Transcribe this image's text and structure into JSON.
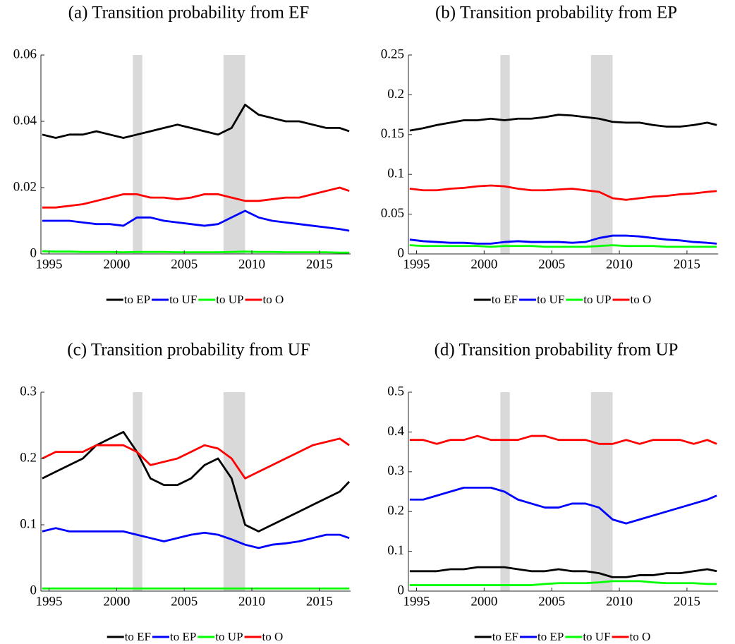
{
  "chart_data": [
    {
      "type": "line",
      "title": "(a) Transition probability from EF",
      "x": [
        1994.5,
        1995.5,
        1996.5,
        1997.5,
        1998.5,
        1999.5,
        2000.5,
        2001.5,
        2002.5,
        2003.5,
        2004.5,
        2005.5,
        2006.5,
        2007.5,
        2008.5,
        2009.5,
        2010.5,
        2011.5,
        2012.5,
        2013.5,
        2014.5,
        2015.5,
        2016.5,
        2017.2
      ],
      "xlim": [
        1994.4,
        2017.3
      ],
      "xticks": [
        1995,
        2000,
        2005,
        2010,
        2015
      ],
      "ylim": [
        0,
        0.06
      ],
      "yticks": [
        0,
        0.02,
        0.04,
        0.06
      ],
      "shaded_periods": [
        [
          2001.2,
          2001.9
        ],
        [
          2007.9,
          2009.5
        ]
      ],
      "shade_color": "#d9d9d9",
      "legend": "bottom",
      "series": [
        {
          "name": "to EP",
          "color": "#000000",
          "values": [
            0.036,
            0.035,
            0.036,
            0.036,
            0.037,
            0.036,
            0.035,
            0.036,
            0.037,
            0.038,
            0.039,
            0.038,
            0.037,
            0.036,
            0.038,
            0.045,
            0.042,
            0.041,
            0.04,
            0.04,
            0.039,
            0.038,
            0.038,
            0.037
          ]
        },
        {
          "name": "to UF",
          "color": "#0000ff",
          "values": [
            0.01,
            0.01,
            0.01,
            0.0095,
            0.009,
            0.009,
            0.0085,
            0.011,
            0.011,
            0.01,
            0.0095,
            0.009,
            0.0085,
            0.009,
            0.011,
            0.013,
            0.011,
            0.01,
            0.0095,
            0.009,
            0.0085,
            0.008,
            0.0075,
            0.007
          ]
        },
        {
          "name": "to UP",
          "color": "#00ff00",
          "values": [
            0.0008,
            0.0007,
            0.0007,
            0.0006,
            0.0006,
            0.0006,
            0.0005,
            0.0006,
            0.0006,
            0.0006,
            0.0005,
            0.0005,
            0.0005,
            0.0005,
            0.0006,
            0.0007,
            0.0006,
            0.0006,
            0.0005,
            0.0005,
            0.0005,
            0.0005,
            0.0004,
            0.0004
          ]
        },
        {
          "name": "to O",
          "color": "#ff0000",
          "values": [
            0.014,
            0.014,
            0.0145,
            0.015,
            0.016,
            0.017,
            0.018,
            0.018,
            0.017,
            0.017,
            0.0165,
            0.017,
            0.018,
            0.018,
            0.017,
            0.016,
            0.016,
            0.0165,
            0.017,
            0.017,
            0.018,
            0.019,
            0.02,
            0.019
          ]
        }
      ]
    },
    {
      "type": "line",
      "title": "(b) Transition probability from EP",
      "x": [
        1994.5,
        1995.5,
        1996.5,
        1997.5,
        1998.5,
        1999.5,
        2000.5,
        2001.5,
        2002.5,
        2003.5,
        2004.5,
        2005.5,
        2006.5,
        2007.5,
        2008.5,
        2009.5,
        2010.5,
        2011.5,
        2012.5,
        2013.5,
        2014.5,
        2015.5,
        2016.5,
        2017.2
      ],
      "xlim": [
        1994.4,
        2017.3
      ],
      "xticks": [
        1995,
        2000,
        2005,
        2010,
        2015
      ],
      "ylim": [
        0,
        0.25
      ],
      "yticks": [
        0,
        0.05,
        0.1,
        0.15,
        0.2,
        0.25
      ],
      "shaded_periods": [
        [
          2001.2,
          2001.9
        ],
        [
          2007.9,
          2009.5
        ]
      ],
      "shade_color": "#d9d9d9",
      "legend": "bottom",
      "series": [
        {
          "name": "to EF",
          "color": "#000000",
          "values": [
            0.155,
            0.158,
            0.162,
            0.165,
            0.168,
            0.168,
            0.17,
            0.168,
            0.17,
            0.17,
            0.172,
            0.175,
            0.174,
            0.172,
            0.17,
            0.166,
            0.165,
            0.165,
            0.162,
            0.16,
            0.16,
            0.162,
            0.165,
            0.162
          ]
        },
        {
          "name": "to UF",
          "color": "#0000ff",
          "values": [
            0.018,
            0.016,
            0.015,
            0.014,
            0.014,
            0.013,
            0.013,
            0.015,
            0.016,
            0.015,
            0.015,
            0.015,
            0.014,
            0.015,
            0.02,
            0.023,
            0.023,
            0.022,
            0.02,
            0.018,
            0.017,
            0.015,
            0.014,
            0.013
          ]
        },
        {
          "name": "to UP",
          "color": "#00ff00",
          "values": [
            0.011,
            0.01,
            0.01,
            0.01,
            0.01,
            0.01,
            0.009,
            0.01,
            0.01,
            0.01,
            0.009,
            0.009,
            0.009,
            0.009,
            0.01,
            0.011,
            0.01,
            0.01,
            0.01,
            0.009,
            0.009,
            0.009,
            0.009,
            0.009
          ]
        },
        {
          "name": "to O",
          "color": "#ff0000",
          "values": [
            0.082,
            0.08,
            0.08,
            0.082,
            0.083,
            0.085,
            0.086,
            0.085,
            0.082,
            0.08,
            0.08,
            0.081,
            0.082,
            0.08,
            0.078,
            0.07,
            0.068,
            0.07,
            0.072,
            0.073,
            0.075,
            0.076,
            0.078,
            0.079
          ]
        }
      ]
    },
    {
      "type": "line",
      "title": "(c) Transition probability from UF",
      "x": [
        1994.5,
        1995.5,
        1996.5,
        1997.5,
        1998.5,
        1999.5,
        2000.5,
        2001.5,
        2002.5,
        2003.5,
        2004.5,
        2005.5,
        2006.5,
        2007.5,
        2008.5,
        2009.5,
        2010.5,
        2011.5,
        2012.5,
        2013.5,
        2014.5,
        2015.5,
        2016.5,
        2017.2
      ],
      "xlim": [
        1994.4,
        2017.3
      ],
      "xticks": [
        1995,
        2000,
        2005,
        2010,
        2015
      ],
      "ylim": [
        0,
        0.3
      ],
      "yticks": [
        0,
        0.1,
        0.2,
        0.3
      ],
      "shaded_periods": [
        [
          2001.2,
          2001.9
        ],
        [
          2007.9,
          2009.5
        ]
      ],
      "shade_color": "#d9d9d9",
      "legend": "bottom",
      "series": [
        {
          "name": "to EF",
          "color": "#000000",
          "values": [
            0.17,
            0.18,
            0.19,
            0.2,
            0.22,
            0.23,
            0.24,
            0.21,
            0.17,
            0.16,
            0.16,
            0.17,
            0.19,
            0.2,
            0.17,
            0.1,
            0.09,
            0.1,
            0.11,
            0.12,
            0.13,
            0.14,
            0.15,
            0.165
          ]
        },
        {
          "name": "to EP",
          "color": "#0000ff",
          "values": [
            0.09,
            0.095,
            0.09,
            0.09,
            0.09,
            0.09,
            0.09,
            0.085,
            0.08,
            0.075,
            0.08,
            0.085,
            0.088,
            0.085,
            0.078,
            0.07,
            0.065,
            0.07,
            0.072,
            0.075,
            0.08,
            0.085,
            0.085,
            0.08
          ]
        },
        {
          "name": "to UP",
          "color": "#00ff00",
          "values": [
            0.004,
            0.004,
            0.004,
            0.004,
            0.004,
            0.004,
            0.004,
            0.004,
            0.004,
            0.004,
            0.004,
            0.004,
            0.004,
            0.004,
            0.004,
            0.004,
            0.004,
            0.004,
            0.004,
            0.004,
            0.004,
            0.004,
            0.004,
            0.004
          ]
        },
        {
          "name": "to O",
          "color": "#ff0000",
          "values": [
            0.2,
            0.21,
            0.21,
            0.21,
            0.22,
            0.22,
            0.22,
            0.21,
            0.19,
            0.195,
            0.2,
            0.21,
            0.22,
            0.215,
            0.2,
            0.17,
            0.18,
            0.19,
            0.2,
            0.21,
            0.22,
            0.225,
            0.23,
            0.22
          ]
        }
      ]
    },
    {
      "type": "line",
      "title": "(d) Transition probability from UP",
      "x": [
        1994.5,
        1995.5,
        1996.5,
        1997.5,
        1998.5,
        1999.5,
        2000.5,
        2001.5,
        2002.5,
        2003.5,
        2004.5,
        2005.5,
        2006.5,
        2007.5,
        2008.5,
        2009.5,
        2010.5,
        2011.5,
        2012.5,
        2013.5,
        2014.5,
        2015.5,
        2016.5,
        2017.2
      ],
      "xlim": [
        1994.4,
        2017.3
      ],
      "xticks": [
        1995,
        2000,
        2005,
        2010,
        2015
      ],
      "ylim": [
        0,
        0.5
      ],
      "yticks": [
        0,
        0.1,
        0.2,
        0.3,
        0.4,
        0.5
      ],
      "shaded_periods": [
        [
          2001.2,
          2001.9
        ],
        [
          2007.9,
          2009.5
        ]
      ],
      "shade_color": "#d9d9d9",
      "legend": "bottom",
      "series": [
        {
          "name": "to EF",
          "color": "#000000",
          "values": [
            0.05,
            0.05,
            0.05,
            0.055,
            0.055,
            0.06,
            0.06,
            0.06,
            0.055,
            0.05,
            0.05,
            0.055,
            0.05,
            0.05,
            0.045,
            0.035,
            0.035,
            0.04,
            0.04,
            0.045,
            0.045,
            0.05,
            0.055,
            0.05
          ]
        },
        {
          "name": "to EP",
          "color": "#0000ff",
          "values": [
            0.23,
            0.23,
            0.24,
            0.25,
            0.26,
            0.26,
            0.26,
            0.25,
            0.23,
            0.22,
            0.21,
            0.21,
            0.22,
            0.22,
            0.21,
            0.18,
            0.17,
            0.18,
            0.19,
            0.2,
            0.21,
            0.22,
            0.23,
            0.24
          ]
        },
        {
          "name": "to UF",
          "color": "#00ff00",
          "values": [
            0.015,
            0.015,
            0.015,
            0.015,
            0.015,
            0.015,
            0.015,
            0.015,
            0.015,
            0.015,
            0.018,
            0.02,
            0.02,
            0.02,
            0.022,
            0.025,
            0.025,
            0.025,
            0.022,
            0.02,
            0.02,
            0.02,
            0.018,
            0.018
          ]
        },
        {
          "name": "to O",
          "color": "#ff0000",
          "values": [
            0.38,
            0.38,
            0.37,
            0.38,
            0.38,
            0.39,
            0.38,
            0.38,
            0.38,
            0.39,
            0.39,
            0.38,
            0.38,
            0.38,
            0.37,
            0.37,
            0.38,
            0.37,
            0.38,
            0.38,
            0.38,
            0.37,
            0.38,
            0.37
          ]
        }
      ]
    }
  ]
}
